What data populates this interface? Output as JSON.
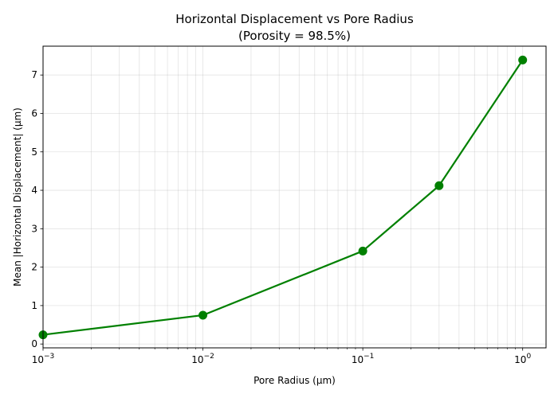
{
  "chart_data": {
    "type": "line",
    "title": "Horizontal Displacement vs Pore Radius",
    "subtitle": "(Porosity = 98.5%)",
    "xlabel": "Pore Radius (μm)",
    "ylabel": "Mean |Horizontal Displacement| (μm)",
    "x_scale": "log",
    "xlim": [
      0.001,
      1.4
    ],
    "ylim": [
      -0.1,
      7.75
    ],
    "x_ticks": [
      {
        "value": 0.001,
        "base": "10",
        "exp": "−3"
      },
      {
        "value": 0.01,
        "base": "10",
        "exp": "−2"
      },
      {
        "value": 0.1,
        "base": "10",
        "exp": "−1"
      },
      {
        "value": 1,
        "base": "10",
        "exp": "0"
      }
    ],
    "y_ticks": [
      "0",
      "1",
      "2",
      "3",
      "4",
      "5",
      "6",
      "7"
    ],
    "grid": true,
    "color": "#008000",
    "series": [
      {
        "x": [
          0.001,
          0.01,
          0.1,
          0.3,
          1.0
        ],
        "y": [
          0.24,
          0.75,
          2.42,
          4.12,
          7.39
        ]
      }
    ]
  }
}
